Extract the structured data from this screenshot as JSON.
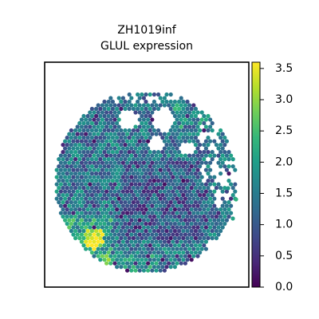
{
  "chart_data": {
    "type": "scatter",
    "title_lines": [
      "ZH1019inf",
      "GLUL expression"
    ],
    "xlabel": "",
    "ylabel": "",
    "colorbar": {
      "cmap": "viridis",
      "range": [
        0.0,
        3.6
      ],
      "ticks": [
        0.0,
        0.5,
        1.0,
        1.5,
        2.0,
        2.5,
        3.0,
        3.5
      ],
      "tick_labels": [
        "0.0",
        "0.5",
        "1.0",
        "1.5",
        "2.0",
        "2.5",
        "3.0",
        "3.5"
      ]
    },
    "axes_ticks_visible": false,
    "grid": false,
    "marker": "hexagonal spots"
  },
  "colors": {
    "viridis_stops": [
      "#440154",
      "#482878",
      "#3e4989",
      "#31688e",
      "#26828e",
      "#1f9e89",
      "#35b779",
      "#6ece58",
      "#b5de2b",
      "#fde725"
    ],
    "background": "#ffffff",
    "axes_edge": "#000000"
  }
}
